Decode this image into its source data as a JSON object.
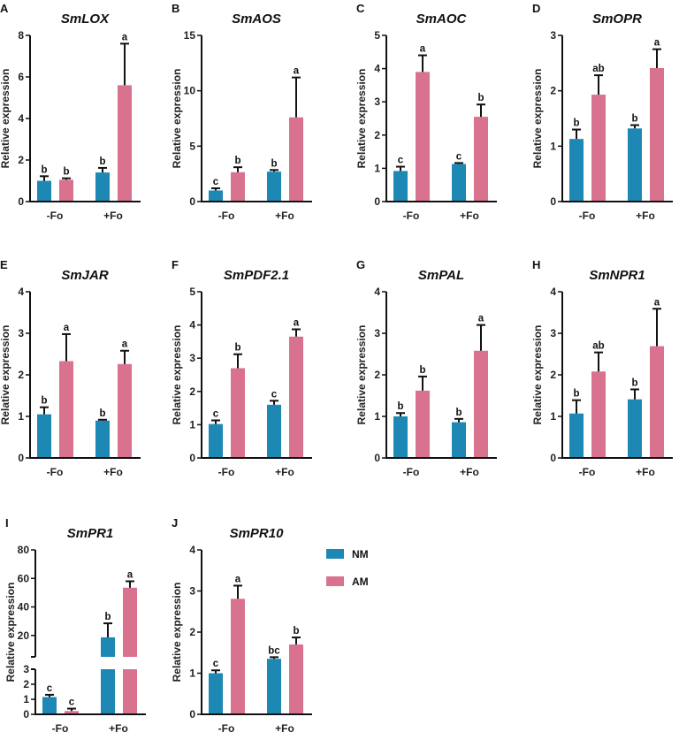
{
  "colors": {
    "NM": "#1e88b4",
    "AM": "#d8728f"
  },
  "legend": [
    {
      "key": "NM",
      "label": "NM"
    },
    {
      "key": "AM",
      "label": "AM"
    }
  ],
  "chart_data": [
    {
      "type": "bar",
      "panel": "A",
      "title": "SmLOX",
      "ylabel": "Relative expression",
      "categories": [
        "-Fo",
        "+Fo"
      ],
      "ylim": [
        0,
        8
      ],
      "yticks": [
        0,
        2,
        4,
        6,
        8
      ],
      "series": [
        {
          "name": "NM",
          "values": [
            1.0,
            1.4
          ],
          "err_top": [
            1.22,
            1.62
          ],
          "letters": [
            "b",
            "b"
          ]
        },
        {
          "name": "AM",
          "values": [
            1.05,
            5.6
          ],
          "err_top": [
            1.12,
            7.6
          ],
          "letters": [
            "b",
            "a"
          ]
        }
      ]
    },
    {
      "type": "bar",
      "panel": "B",
      "title": "SmAOS",
      "ylabel": "Relative expression",
      "categories": [
        "-Fo",
        "+Fo"
      ],
      "ylim": [
        0,
        15
      ],
      "yticks": [
        0,
        5,
        10,
        15
      ],
      "series": [
        {
          "name": "NM",
          "values": [
            1.0,
            2.7
          ],
          "err_top": [
            1.2,
            2.85
          ],
          "letters": [
            "c",
            "b"
          ]
        },
        {
          "name": "AM",
          "values": [
            2.65,
            7.6
          ],
          "err_top": [
            3.1,
            11.2
          ],
          "letters": [
            "b",
            "a"
          ]
        }
      ]
    },
    {
      "type": "bar",
      "panel": "C",
      "title": "SmAOC",
      "ylabel": "Relative expression",
      "categories": [
        "-Fo",
        "+Fo"
      ],
      "ylim": [
        0,
        5
      ],
      "yticks": [
        0,
        1,
        2,
        3,
        4,
        5
      ],
      "series": [
        {
          "name": "NM",
          "values": [
            0.92,
            1.13
          ],
          "err_top": [
            1.05,
            1.16
          ],
          "letters": [
            "c",
            "c"
          ]
        },
        {
          "name": "AM",
          "values": [
            3.9,
            2.55
          ],
          "err_top": [
            4.4,
            2.92
          ],
          "letters": [
            "a",
            "b"
          ]
        }
      ]
    },
    {
      "type": "bar",
      "panel": "D",
      "title": "SmOPR",
      "ylabel": "Relative expression",
      "categories": [
        "-Fo",
        "+Fo"
      ],
      "ylim": [
        0,
        3
      ],
      "yticks": [
        0,
        1,
        2,
        3
      ],
      "series": [
        {
          "name": "NM",
          "values": [
            1.13,
            1.32
          ],
          "err_top": [
            1.3,
            1.38
          ],
          "letters": [
            "b",
            "b"
          ]
        },
        {
          "name": "AM",
          "values": [
            1.93,
            2.41
          ],
          "err_top": [
            2.28,
            2.75
          ],
          "letters": [
            "ab",
            "a"
          ]
        }
      ]
    },
    {
      "type": "bar",
      "panel": "E",
      "title": "SmJAR",
      "ylabel": "Relative expression",
      "categories": [
        "-Fo",
        "+Fo"
      ],
      "ylim": [
        0,
        4
      ],
      "yticks": [
        0,
        1,
        2,
        3,
        4
      ],
      "series": [
        {
          "name": "NM",
          "values": [
            1.05,
            0.9
          ],
          "err_top": [
            1.22,
            0.92
          ],
          "letters": [
            "b",
            "b"
          ]
        },
        {
          "name": "AM",
          "values": [
            2.33,
            2.26
          ],
          "err_top": [
            2.98,
            2.58
          ],
          "letters": [
            "a",
            "a"
          ]
        }
      ]
    },
    {
      "type": "bar",
      "panel": "F",
      "title": "SmPDF2.1",
      "ylabel": "Relative expression",
      "categories": [
        "-Fo",
        "+Fo"
      ],
      "ylim": [
        0,
        5
      ],
      "yticks": [
        0,
        1,
        2,
        3,
        4,
        5
      ],
      "series": [
        {
          "name": "NM",
          "values": [
            1.02,
            1.6
          ],
          "err_top": [
            1.13,
            1.72
          ],
          "letters": [
            "c",
            "c"
          ]
        },
        {
          "name": "AM",
          "values": [
            2.7,
            3.65
          ],
          "err_top": [
            3.12,
            3.87
          ],
          "letters": [
            "b",
            "a"
          ]
        }
      ]
    },
    {
      "type": "bar",
      "panel": "G",
      "title": "SmPAL",
      "ylabel": "Relative expression",
      "categories": [
        "-Fo",
        "+Fo"
      ],
      "ylim": [
        0,
        4
      ],
      "yticks": [
        0,
        1,
        2,
        3,
        4
      ],
      "series": [
        {
          "name": "NM",
          "values": [
            1.0,
            0.86
          ],
          "err_top": [
            1.08,
            0.94
          ],
          "letters": [
            "b",
            "b"
          ]
        },
        {
          "name": "AM",
          "values": [
            1.62,
            2.58
          ],
          "err_top": [
            1.96,
            3.2
          ],
          "letters": [
            "b",
            "a"
          ]
        }
      ]
    },
    {
      "type": "bar",
      "panel": "H",
      "title": "SmNPR1",
      "ylabel": "Relative expression",
      "categories": [
        "-Fo",
        "+Fo"
      ],
      "ylim": [
        0,
        4
      ],
      "yticks": [
        0,
        1,
        2,
        3,
        4
      ],
      "series": [
        {
          "name": "NM",
          "values": [
            1.07,
            1.41
          ],
          "err_top": [
            1.39,
            1.65
          ],
          "letters": [
            "b",
            "b"
          ]
        },
        {
          "name": "AM",
          "values": [
            2.08,
            2.69
          ],
          "err_top": [
            2.54,
            3.59
          ],
          "letters": [
            "ab",
            "a"
          ]
        }
      ]
    },
    {
      "type": "bar",
      "panel": "I",
      "title": "SmPR1",
      "ylabel": "Relative expression",
      "categories": [
        "-Fo",
        "+Fo"
      ],
      "ylim": [
        0,
        80
      ],
      "broken_axis": {
        "lower": [
          0,
          3
        ],
        "upper": [
          5,
          80
        ]
      },
      "yticks_lower": [
        0,
        1,
        2,
        3
      ],
      "yticks_upper": [
        20,
        40,
        60,
        80
      ],
      "series": [
        {
          "name": "NM",
          "values": [
            1.15,
            18.7
          ],
          "err_top": [
            1.3,
            28.5
          ],
          "letters": [
            "c",
            "b"
          ]
        },
        {
          "name": "AM",
          "values": [
            0.22,
            53.5
          ],
          "err_top": [
            0.38,
            58
          ],
          "letters": [
            "c",
            "a"
          ]
        }
      ]
    },
    {
      "type": "bar",
      "panel": "J",
      "title": "SmPR10",
      "ylabel": "Relative expression",
      "categories": [
        "-Fo",
        "+Fo"
      ],
      "ylim": [
        0,
        4
      ],
      "yticks": [
        0,
        1,
        2,
        3,
        4
      ],
      "series": [
        {
          "name": "NM",
          "values": [
            1.0,
            1.35
          ],
          "err_top": [
            1.07,
            1.39
          ],
          "letters": [
            "c",
            "bc"
          ]
        },
        {
          "name": "AM",
          "values": [
            2.81,
            1.7
          ],
          "err_top": [
            3.13,
            1.87
          ],
          "letters": [
            "a",
            "b"
          ]
        }
      ]
    }
  ]
}
